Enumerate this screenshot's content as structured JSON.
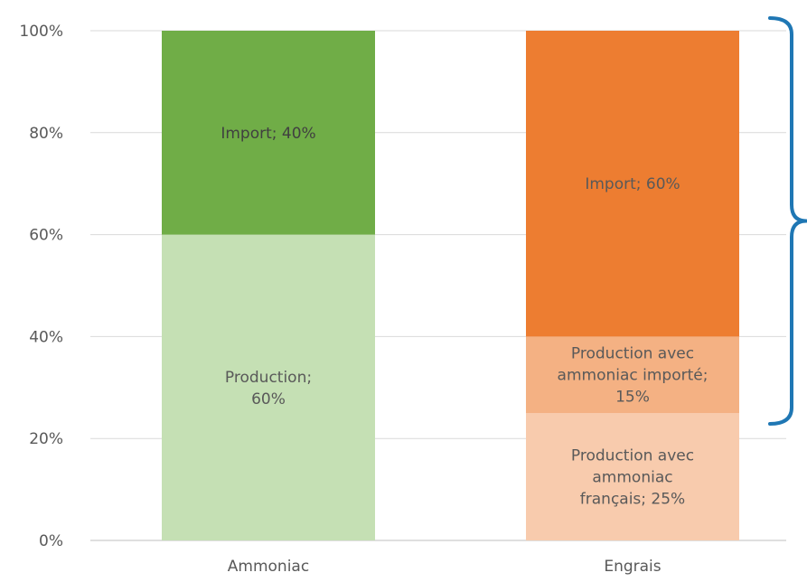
{
  "chart_data": {
    "type": "bar",
    "stacked": true,
    "percent_scale": true,
    "categories": [
      "Ammoniac",
      "Engrais"
    ],
    "y_ticks": [
      "0%",
      "20%",
      "40%",
      "60%",
      "80%",
      "100%"
    ],
    "ylim": [
      0,
      100
    ],
    "grid": true,
    "legend": "none",
    "segments": [
      {
        "category": "Ammoniac",
        "start": 0,
        "value": 60,
        "color": "#c5e0b4",
        "text_color": "#595959",
        "label_lines": [
          "Production;",
          "60%"
        ]
      },
      {
        "category": "Ammoniac",
        "start": 60,
        "value": 40,
        "color": "#70ad47",
        "text_color": "#404040",
        "label_lines": [
          "Import; 40%"
        ]
      },
      {
        "category": "Engrais",
        "start": 0,
        "value": 25,
        "color": "#f8cbad",
        "text_color": "#595959",
        "label_lines": [
          "Production avec",
          "ammoniac",
          "français; 25%"
        ]
      },
      {
        "category": "Engrais",
        "start": 25,
        "value": 15,
        "color": "#f4b183",
        "text_color": "#595959",
        "label_lines": [
          "Production avec",
          "ammoniac importé;",
          "15%"
        ]
      },
      {
        "category": "Engrais",
        "start": 40,
        "value": 60,
        "color": "#ed7d31",
        "text_color": "#595959",
        "label_lines": [
          "Import; 60%"
        ]
      }
    ],
    "brace": {
      "from": 25,
      "to": 100,
      "color": "#1f77b4"
    }
  }
}
